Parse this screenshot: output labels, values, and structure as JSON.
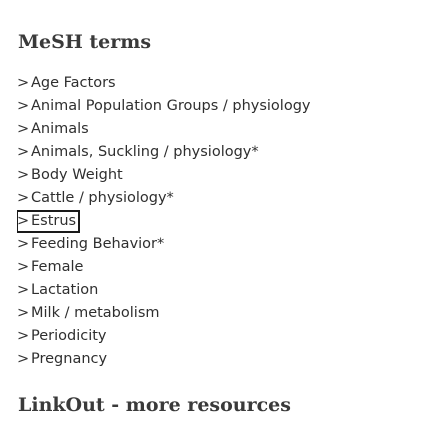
{
  "mesh": {
    "title": "MeSH terms",
    "chevron": ">",
    "terms": [
      {
        "label": "Age Factors"
      },
      {
        "label": "Animal Population Groups / physiology"
      },
      {
        "label": "Animals"
      },
      {
        "label": "Animals, Suckling / physiology*"
      },
      {
        "label": "Body Weight"
      },
      {
        "label": "Cattle / physiology*"
      },
      {
        "label": "Estrus",
        "focused": true
      },
      {
        "label": "Feeding Behavior*"
      },
      {
        "label": "Female"
      },
      {
        "label": "Lactation"
      },
      {
        "label": "Milk / metabolism"
      },
      {
        "label": "Periodicity"
      },
      {
        "label": "Pregnancy"
      }
    ]
  },
  "linkout": {
    "title": "LinkOut - more resources"
  }
}
